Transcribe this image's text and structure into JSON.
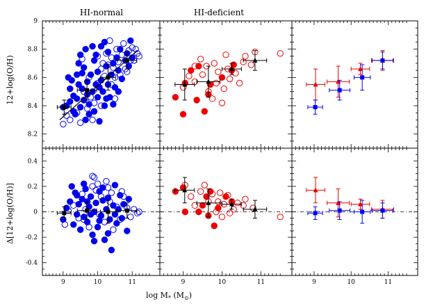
{
  "chart_data": {
    "type": "scatter",
    "column_titles": [
      "HI-normal",
      "HI-deficient"
    ],
    "xlabel": "log M",
    "xlabel_star": "*",
    "xlabel_unit_open": " (M",
    "xlabel_unit_sub": "⊙",
    "xlabel_unit_close": ")",
    "ylabel_top": "12+log(O/H)",
    "ylabel_bottom": "Δ[12+log(O/H)]",
    "xlim": [
      8.4,
      11.8
    ],
    "ylim_top": [
      8.1,
      9.0
    ],
    "ylim_bottom": [
      -0.5,
      0.5
    ],
    "x_ticks": [
      "9",
      "10",
      "11"
    ],
    "y_ticks_top": [
      "8.2",
      "8.4",
      "8.6",
      "8.8",
      "9"
    ],
    "y_ticks_bottom": [
      "-0.4",
      "-0.2",
      "0",
      "0.2",
      "0.4"
    ],
    "colors": {
      "normal": "#0000ee",
      "deficient": "#ee0000",
      "black": "#000000"
    },
    "fit_normal": {
      "x": [
        8.9,
        11.15
      ],
      "y": [
        8.3,
        8.79
      ]
    },
    "fit_deficient": {
      "x": [
        9.4,
        11.05
      ],
      "y": [
        8.35,
        8.79
      ]
    },
    "normal_filled": [
      [
        9.0,
        8.39
      ],
      [
        9.1,
        8.4
      ],
      [
        9.2,
        8.43
      ],
      [
        9.25,
        8.58
      ],
      [
        9.3,
        8.47
      ],
      [
        9.35,
        8.34
      ],
      [
        9.4,
        8.62
      ],
      [
        9.4,
        8.45
      ],
      [
        9.45,
        8.55
      ],
      [
        9.5,
        8.39
      ],
      [
        9.55,
        8.52
      ],
      [
        9.6,
        8.44
      ],
      [
        9.6,
        8.67
      ],
      [
        9.65,
        8.3
      ],
      [
        9.7,
        8.57
      ],
      [
        9.7,
        8.48
      ],
      [
        9.75,
        8.41
      ],
      [
        9.8,
        8.62
      ],
      [
        9.85,
        8.5
      ],
      [
        9.9,
        8.36
      ],
      [
        9.9,
        8.72
      ],
      [
        9.95,
        8.55
      ],
      [
        10.0,
        8.46
      ],
      [
        10.0,
        8.64
      ],
      [
        10.05,
        8.29
      ],
      [
        10.1,
        8.58
      ],
      [
        10.1,
        8.82
      ],
      [
        10.15,
        8.5
      ],
      [
        10.2,
        8.4
      ],
      [
        10.25,
        8.68
      ],
      [
        10.3,
        8.55
      ],
      [
        10.3,
        8.78
      ],
      [
        10.35,
        8.46
      ],
      [
        10.4,
        8.62
      ],
      [
        10.45,
        8.7
      ],
      [
        10.5,
        8.53
      ],
      [
        10.55,
        8.74
      ],
      [
        10.6,
        8.65
      ],
      [
        10.7,
        8.59
      ],
      [
        10.8,
        8.72
      ],
      [
        10.85,
        8.77
      ],
      [
        10.9,
        8.68
      ],
      [
        10.95,
        8.86
      ],
      [
        11.0,
        8.74
      ],
      [
        9.15,
        8.6
      ],
      [
        9.45,
        8.7
      ],
      [
        9.65,
        8.8
      ],
      [
        9.85,
        8.82
      ],
      [
        10.2,
        8.85
      ],
      [
        10.45,
        8.41
      ],
      [
        9.3,
        8.36
      ],
      [
        9.55,
        8.63
      ],
      [
        9.75,
        8.34
      ],
      [
        10.05,
        8.53
      ],
      [
        10.6,
        8.5
      ],
      [
        9.95,
        8.76
      ],
      [
        10.25,
        8.45
      ],
      [
        9.2,
        8.52
      ],
      [
        10.65,
        8.8
      ],
      [
        9.5,
        8.76
      ]
    ],
    "normal_open": [
      [
        9.0,
        8.27
      ],
      [
        9.1,
        8.33
      ],
      [
        9.2,
        8.3
      ],
      [
        9.4,
        8.35
      ],
      [
        9.5,
        8.28
      ],
      [
        9.6,
        8.5
      ],
      [
        9.7,
        8.38
      ],
      [
        9.8,
        8.46
      ],
      [
        9.9,
        8.42
      ],
      [
        10.0,
        8.56
      ],
      [
        10.0,
        8.75
      ],
      [
        10.1,
        8.66
      ],
      [
        10.2,
        8.61
      ],
      [
        10.3,
        8.69
      ],
      [
        10.35,
        8.86
      ],
      [
        10.4,
        8.74
      ],
      [
        10.5,
        8.6
      ],
      [
        10.55,
        8.8
      ],
      [
        10.6,
        8.71
      ],
      [
        10.7,
        8.76
      ],
      [
        10.75,
        8.84
      ],
      [
        10.8,
        8.66
      ],
      [
        10.9,
        8.79
      ],
      [
        11.0,
        8.81
      ],
      [
        11.05,
        8.72
      ],
      [
        11.15,
        8.77
      ],
      [
        11.2,
        8.75
      ],
      [
        10.65,
        8.62
      ],
      [
        10.45,
        8.67
      ],
      [
        10.25,
        8.77
      ],
      [
        9.55,
        8.73
      ],
      [
        9.85,
        8.3
      ],
      [
        10.15,
        8.7
      ],
      [
        10.95,
        8.72
      ],
      [
        10.85,
        8.64
      ],
      [
        10.5,
        8.45
      ],
      [
        10.1,
        8.4
      ],
      [
        9.75,
        8.6
      ],
      [
        10.4,
        8.55
      ],
      [
        11.1,
        8.8
      ]
    ],
    "normal_bins": {
      "x": [
        9.03,
        9.69,
        10.3,
        10.85
      ],
      "y": [
        8.39,
        8.51,
        8.6,
        8.72
      ],
      "xerr": [
        0.2,
        0.28,
        0.22,
        0.28
      ],
      "yerr": [
        0.05,
        0.07,
        0.09,
        0.06
      ]
    },
    "normal_bins_delta": {
      "y": [
        -0.01,
        0.01,
        0.0,
        0.01
      ],
      "yerr": [
        0.05,
        0.07,
        0.09,
        0.06
      ]
    },
    "deficient_filled": [
      [
        8.8,
        8.46
      ],
      [
        9.0,
        8.34
      ],
      [
        9.05,
        8.56
      ],
      [
        9.2,
        8.65
      ],
      [
        9.35,
        8.44
      ],
      [
        9.4,
        8.68
      ],
      [
        9.55,
        8.36
      ],
      [
        9.65,
        8.48
      ],
      [
        9.7,
        8.55
      ],
      [
        10.0,
        8.6
      ],
      [
        10.25,
        8.65
      ],
      [
        10.3,
        8.69
      ]
    ],
    "deficient_open": [
      [
        9.0,
        8.53
      ],
      [
        9.15,
        8.61
      ],
      [
        9.3,
        8.57
      ],
      [
        9.45,
        8.73
      ],
      [
        9.5,
        8.62
      ],
      [
        9.6,
        8.68
      ],
      [
        9.65,
        8.5
      ],
      [
        9.75,
        8.45
      ],
      [
        9.8,
        8.7
      ],
      [
        9.85,
        8.56
      ],
      [
        9.9,
        8.64
      ],
      [
        10.0,
        8.42
      ],
      [
        10.05,
        8.52
      ],
      [
        10.1,
        8.76
      ],
      [
        10.15,
        8.66
      ],
      [
        10.2,
        8.59
      ],
      [
        10.35,
        8.63
      ],
      [
        10.45,
        8.56
      ],
      [
        10.55,
        8.71
      ],
      [
        10.6,
        8.75
      ],
      [
        10.75,
        8.69
      ],
      [
        10.85,
        8.78
      ],
      [
        11.5,
        8.77
      ],
      [
        9.3,
        8.68
      ]
    ],
    "deficient_bins": {
      "x": [
        9.04,
        9.65,
        10.25,
        10.85
      ],
      "y": [
        8.55,
        8.57,
        8.66,
        8.72
      ],
      "xerr": [
        0.25,
        0.3,
        0.25,
        0.3
      ],
      "yerr": [
        0.11,
        0.11,
        0.04,
        0.07
      ]
    },
    "deficient_bins_delta": {
      "y": [
        0.17,
        0.07,
        0.06,
        0.02
      ],
      "yerr": [
        0.1,
        0.11,
        0.04,
        0.07
      ]
    },
    "normal_delta_filled": [
      [
        9.0,
        -0.06
      ],
      [
        9.1,
        0.03
      ],
      [
        9.2,
        0.08
      ],
      [
        9.3,
        -0.1
      ],
      [
        9.35,
        0.15
      ],
      [
        9.4,
        -0.02
      ],
      [
        9.45,
        0.06
      ],
      [
        9.5,
        -0.14
      ],
      [
        9.55,
        0.1
      ],
      [
        9.6,
        -0.04
      ],
      [
        9.65,
        0.18
      ],
      [
        9.7,
        -0.08
      ],
      [
        9.75,
        0.04
      ],
      [
        9.8,
        0.12
      ],
      [
        9.85,
        -0.18
      ],
      [
        9.9,
        0.0
      ],
      [
        9.95,
        0.07
      ],
      [
        10.0,
        -0.12
      ],
      [
        10.05,
        0.16
      ],
      [
        10.1,
        -0.03
      ],
      [
        10.15,
        0.09
      ],
      [
        10.2,
        -0.22
      ],
      [
        10.25,
        0.02
      ],
      [
        10.3,
        0.11
      ],
      [
        10.35,
        -0.06
      ],
      [
        10.4,
        -0.3
      ],
      [
        10.45,
        0.05
      ],
      [
        10.5,
        0.21
      ],
      [
        10.55,
        -0.09
      ],
      [
        10.6,
        0.02
      ],
      [
        10.7,
        -0.05
      ],
      [
        10.75,
        0.06
      ],
      [
        10.85,
        -0.15
      ],
      [
        10.9,
        0.1
      ],
      [
        9.25,
        0.2
      ],
      [
        9.6,
        0.22
      ],
      [
        9.9,
        -0.23
      ],
      [
        10.3,
        -0.17
      ],
      [
        10.65,
        0.13
      ],
      [
        9.4,
        0.13
      ],
      [
        9.8,
        -0.02
      ],
      [
        10.15,
        0.19
      ],
      [
        9.7,
        0.08
      ],
      [
        10.05,
        -0.07
      ],
      [
        10.5,
        -0.02
      ]
    ],
    "normal_delta_open": [
      [
        9.05,
        -0.1
      ],
      [
        9.15,
        0.01
      ],
      [
        9.3,
        0.05
      ],
      [
        9.45,
        -0.05
      ],
      [
        9.55,
        0.14
      ],
      [
        9.65,
        0.02
      ],
      [
        9.75,
        -0.12
      ],
      [
        9.85,
        0.2
      ],
      [
        9.9,
        0.27
      ],
      [
        9.95,
        0.17
      ],
      [
        10.05,
        -0.02
      ],
      [
        10.1,
        0.12
      ],
      [
        10.2,
        -0.08
      ],
      [
        10.25,
        0.24
      ],
      [
        10.35,
        0.08
      ],
      [
        10.45,
        -0.14
      ],
      [
        10.55,
        0.04
      ],
      [
        10.65,
        -0.06
      ],
      [
        10.75,
        0.12
      ],
      [
        10.85,
        0.03
      ],
      [
        10.95,
        -0.04
      ],
      [
        11.05,
        0.02
      ],
      [
        11.15,
        -0.01
      ],
      [
        11.2,
        0.0
      ],
      [
        9.85,
        0.28
      ],
      [
        10.3,
        0.19
      ],
      [
        10.4,
        0.15
      ],
      [
        9.6,
        -0.06
      ],
      [
        10.0,
        0.22
      ],
      [
        10.7,
        0.16
      ]
    ],
    "deficient_delta_filled": [
      [
        8.8,
        0.16
      ],
      [
        9.0,
        0.19
      ],
      [
        9.05,
        0.0
      ],
      [
        9.4,
        0.0
      ],
      [
        9.5,
        0.05
      ],
      [
        9.65,
        -0.03
      ],
      [
        9.7,
        0.16
      ],
      [
        9.8,
        -0.11
      ],
      [
        9.9,
        0.03
      ],
      [
        10.1,
        0.12
      ],
      [
        10.25,
        0.08
      ],
      [
        9.6,
        0.12
      ]
    ],
    "deficient_delta_open": [
      [
        9.05,
        0.21
      ],
      [
        9.2,
        0.12
      ],
      [
        9.3,
        0.05
      ],
      [
        9.45,
        0.16
      ],
      [
        9.55,
        0.21
      ],
      [
        9.65,
        0.08
      ],
      [
        9.75,
        0.14
      ],
      [
        9.85,
        0.0
      ],
      [
        9.9,
        0.08
      ],
      [
        10.0,
        -0.04
      ],
      [
        10.05,
        0.06
      ],
      [
        10.15,
        0.13
      ],
      [
        10.3,
        0.02
      ],
      [
        10.4,
        0.07
      ],
      [
        10.55,
        0.05
      ],
      [
        10.6,
        0.1
      ],
      [
        10.8,
        0.03
      ],
      [
        11.5,
        -0.04
      ],
      [
        9.95,
        0.15
      ],
      [
        10.2,
        -0.01
      ]
    ]
  }
}
